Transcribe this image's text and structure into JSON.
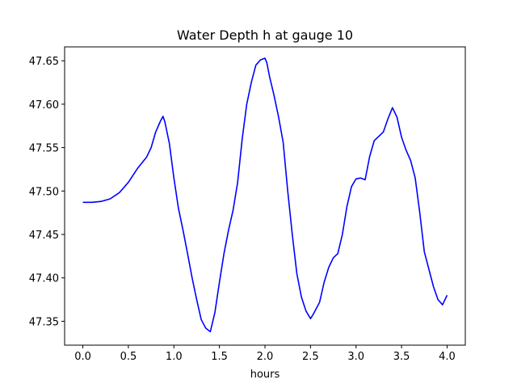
{
  "chart_data": {
    "type": "line",
    "title": "Water Depth h at gauge 10",
    "xlabel": "hours",
    "ylabel": "",
    "xlim": [
      -0.2,
      4.2
    ],
    "ylim": [
      47.3225,
      47.666
    ],
    "grid": false,
    "legend": "none",
    "xticks": [
      0.0,
      0.5,
      1.0,
      1.5,
      2.0,
      2.5,
      3.0,
      3.5,
      4.0
    ],
    "xtick_labels": [
      "0.0",
      "0.5",
      "1.0",
      "1.5",
      "2.0",
      "2.5",
      "3.0",
      "3.5",
      "4.0"
    ],
    "yticks": [
      47.35,
      47.4,
      47.45,
      47.5,
      47.55,
      47.6,
      47.65
    ],
    "ytick_labels": [
      "47.35",
      "47.40",
      "47.45",
      "47.50",
      "47.55",
      "47.60",
      "47.65"
    ],
    "series": [
      {
        "color": "#0000ff",
        "x": [
          0.0,
          0.1,
          0.2,
          0.3,
          0.4,
          0.5,
          0.6,
          0.7,
          0.75,
          0.8,
          0.85,
          0.88,
          0.9,
          0.95,
          1.0,
          1.05,
          1.1,
          1.15,
          1.2,
          1.25,
          1.3,
          1.35,
          1.4,
          1.45,
          1.5,
          1.55,
          1.6,
          1.65,
          1.7,
          1.75,
          1.8,
          1.85,
          1.9,
          1.95,
          2.0,
          2.02,
          2.05,
          2.1,
          2.15,
          2.2,
          2.25,
          2.3,
          2.35,
          2.4,
          2.45,
          2.5,
          2.53,
          2.6,
          2.65,
          2.7,
          2.75,
          2.8,
          2.85,
          2.9,
          2.95,
          3.0,
          3.05,
          3.1,
          3.15,
          3.2,
          3.25,
          3.3,
          3.35,
          3.4,
          3.45,
          3.5,
          3.55,
          3.6,
          3.65,
          3.7,
          3.75,
          3.8,
          3.85,
          3.9,
          3.95,
          4.0
        ],
        "y": [
          47.487,
          47.487,
          47.488,
          47.491,
          47.498,
          47.51,
          47.526,
          47.539,
          47.55,
          47.568,
          47.58,
          47.586,
          47.58,
          47.555,
          47.515,
          47.48,
          47.455,
          47.428,
          47.4,
          47.375,
          47.352,
          47.342,
          47.338,
          47.36,
          47.395,
          47.428,
          47.455,
          47.478,
          47.51,
          47.56,
          47.6,
          47.625,
          47.645,
          47.651,
          47.653,
          47.648,
          47.632,
          47.61,
          47.585,
          47.556,
          47.5,
          47.45,
          47.405,
          47.378,
          47.362,
          47.353,
          47.358,
          47.372,
          47.395,
          47.412,
          47.423,
          47.428,
          47.45,
          47.482,
          47.505,
          47.514,
          47.515,
          47.513,
          47.54,
          47.558,
          47.563,
          47.568,
          47.583,
          47.596,
          47.585,
          47.562,
          47.547,
          47.535,
          47.515,
          47.475,
          47.43,
          47.41,
          47.39,
          47.375,
          47.369,
          47.38
        ]
      }
    ]
  }
}
